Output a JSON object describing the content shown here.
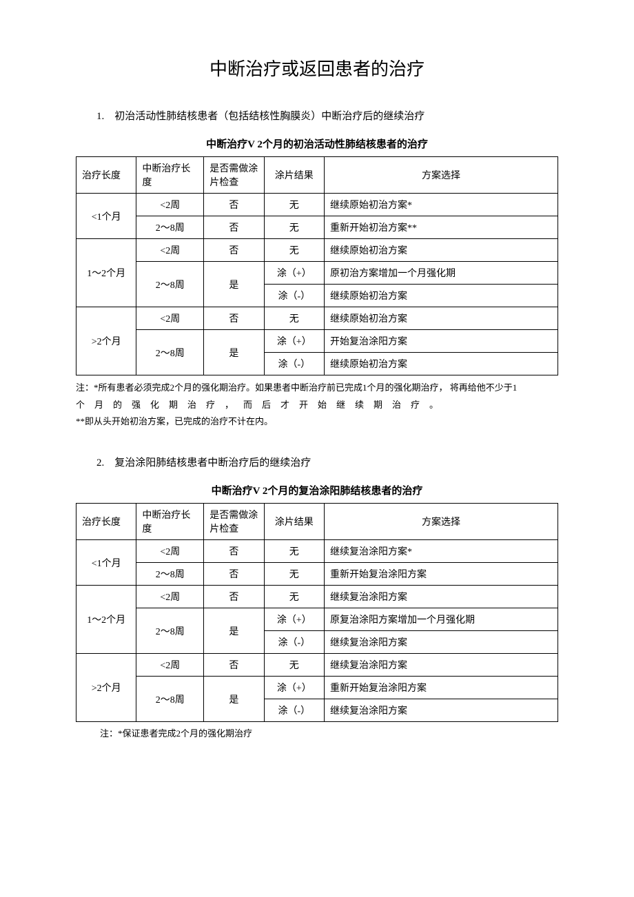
{
  "title": "中断治疗或返回患者的治疗",
  "section1": {
    "intro": "1.　初治活动性肺结核患者（包括结核性胸膜炎）中断治疗后的继续治疗",
    "caption": "中断治疗V 2个月的初治活动性肺结核患者的治疗",
    "headers": {
      "duration": "治疗长度",
      "interrupt": "中断治疗长 度",
      "smear_check": "是否需做涂片检查",
      "smear_result": "涂片结果",
      "plan": "方案选择"
    },
    "rows": {
      "r1": {
        "duration": "<1个月",
        "interrupt": "<2周",
        "check": "否",
        "result": "无",
        "plan": "继续原始初治方案*"
      },
      "r2": {
        "interrupt": "2～8周",
        "check": "否",
        "result": "无",
        "plan": "重新开始初治方案**"
      },
      "r3": {
        "duration": "1～2个月",
        "interrupt": "<2周",
        "check": "否",
        "result": "无",
        "plan": "继续原始初治方案"
      },
      "r4": {
        "interrupt": "2～8周",
        "check": "是",
        "result": "涂（+）",
        "plan": "原初治方案增加一个月强化期"
      },
      "r5": {
        "result": "涂（-）",
        "plan": "继续原始初治方案"
      },
      "r6": {
        "duration": ">2个月",
        "interrupt": "<2周",
        "check": "否",
        "result": "无",
        "plan": "继续原始初治方案"
      },
      "r7": {
        "interrupt": "2～8周",
        "check": "是",
        "result": "涂（+）",
        "plan": "开始复治涂阳方案"
      },
      "r8": {
        "result": "涂（-）",
        "plan": "继续原始初治方案"
      }
    },
    "footnote_line1": "注：*所有患者必须完成2个月的强化期治疗。如果患者中断治疗前已完成1个月的强化期治疗， 将再给他不少于1",
    "footnote_line2": "个月的强化期治疗，而后才开始继续期治疗。",
    "footnote_line3": "**即从头开始初治方案，已完成的治疗不计在内。"
  },
  "section2": {
    "intro": "2.　复治涂阳肺结核患者中断治疗后的继续治疗",
    "caption": "中断治疗V 2个月的复治涂阳肺结核患者的治疗",
    "headers": {
      "duration": "治疗长度",
      "interrupt": "中断治疗长度",
      "smear_check": "是否需做涂片检查",
      "smear_result": "涂片结果",
      "plan": "方案选择"
    },
    "rows": {
      "r1": {
        "duration": "<1个月",
        "interrupt": "<2周",
        "check": "否",
        "result": "无",
        "plan": "继续复治涂阳方案*"
      },
      "r2": {
        "interrupt": "2～8周",
        "check": "否",
        "result": "无",
        "plan": "重新开始复治涂阳方案"
      },
      "r3": {
        "duration": "1～2个月",
        "interrupt": "<2周",
        "check": "否",
        "result": "无",
        "plan": "继续复治涂阳方案"
      },
      "r4": {
        "interrupt": "2～8周",
        "check": "是",
        "result": "涂（+）",
        "plan": "原复治涂阳方案增加一个月强化期"
      },
      "r5": {
        "result": "涂（-）",
        "plan": "继续复治涂阳方案"
      },
      "r6": {
        "duration": ">2个月",
        "interrupt": "<2周",
        "check": "否",
        "result": "无",
        "plan": "继续复治涂阳方案"
      },
      "r7": {
        "interrupt": "2～8周",
        "check": "是",
        "result": "涂（+）",
        "plan": "重新开始复治涂阳方案"
      },
      "r8": {
        "result": "涂（-）",
        "plan": "继续复治涂阳方案"
      }
    },
    "footnote": "注：*保证患者完成2个月的强化期治疗"
  }
}
